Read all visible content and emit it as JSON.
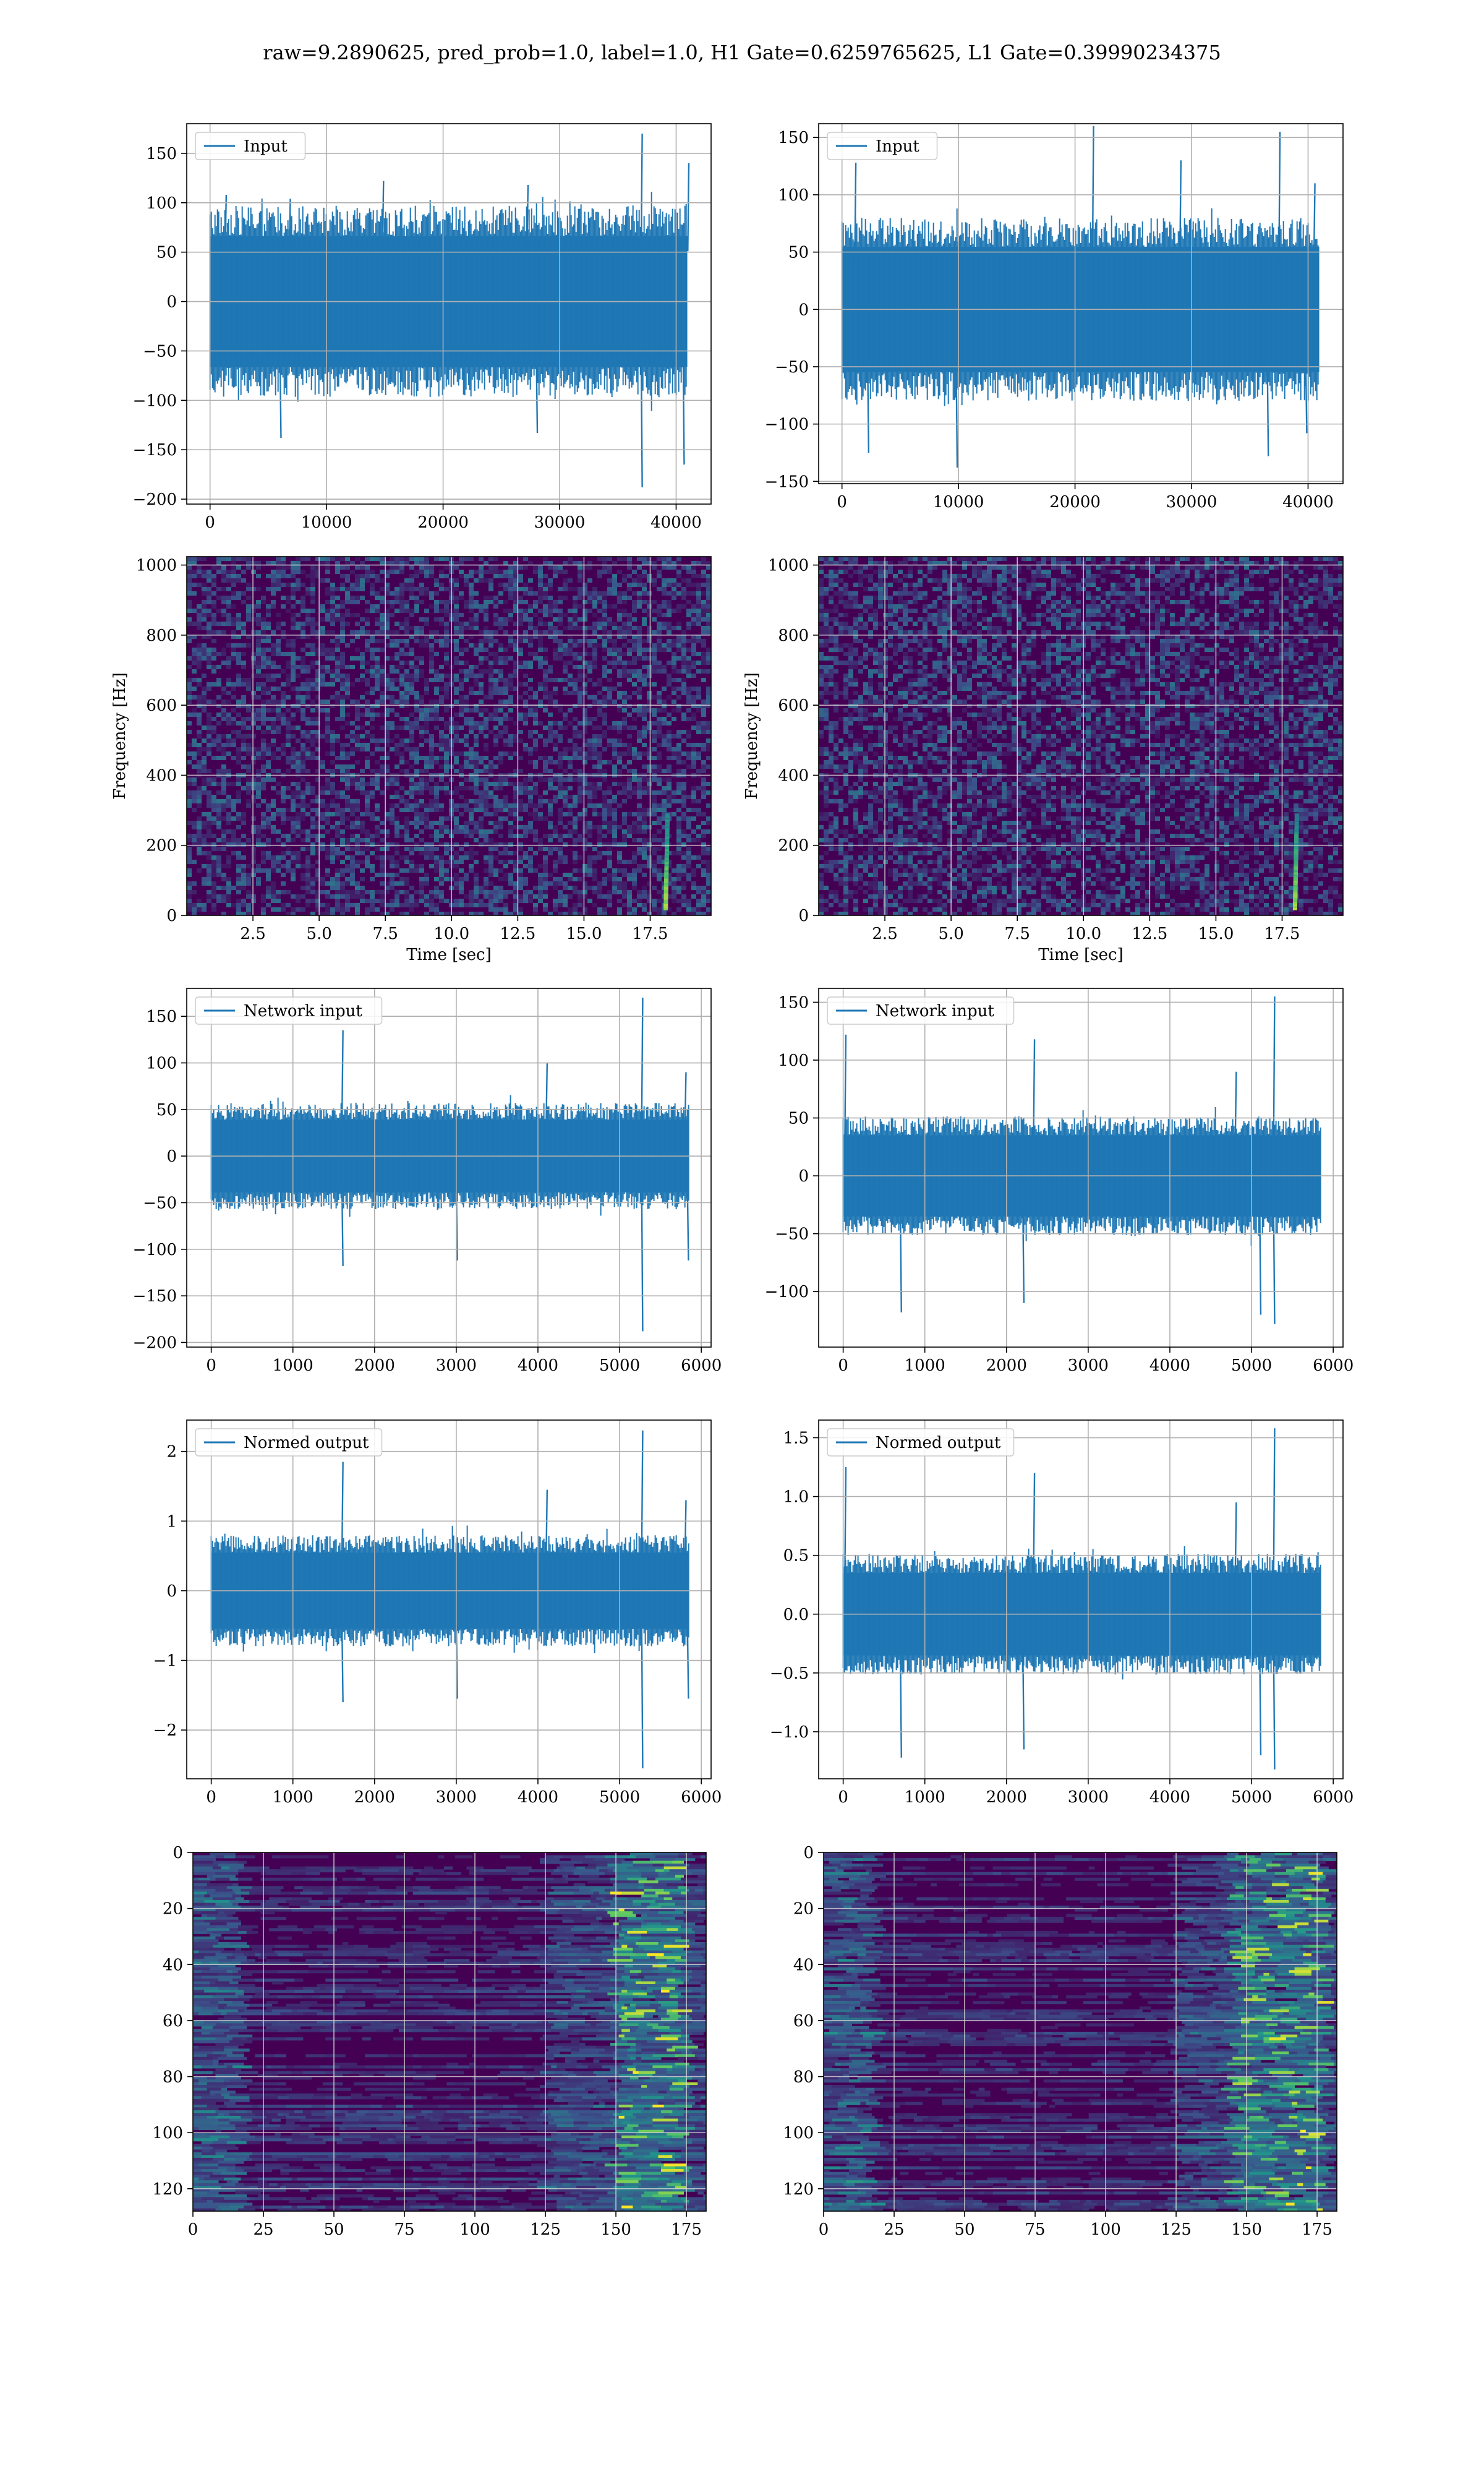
{
  "suptitle": "raw=9.2890625, pred_prob=1.0, label=1.0, H1 Gate=0.6259765625, L1 Gate=0.39990234375",
  "colors": {
    "line": "#1f77b4",
    "grid": "#b0b0b0",
    "viridis_low": "#440154",
    "viridis_mid": "#3b528b",
    "viridis_teal": "#21918c",
    "viridis_green": "#5ec962",
    "viridis_high": "#fde725"
  },
  "chart_data": [
    {
      "id": "h1-input",
      "type": "line",
      "legend": "Input",
      "legend_loc": "upper-left",
      "grid": true,
      "xlim": [
        -2000,
        43000
      ],
      "ylim": [
        -205,
        180
      ],
      "xticks": [
        0,
        10000,
        20000,
        30000,
        40000
      ],
      "xtick_labels": [
        "0",
        "10000",
        "20000",
        "30000",
        "40000"
      ],
      "yticks": [
        -200,
        -150,
        -100,
        -50,
        0,
        50,
        100,
        150
      ],
      "ytick_labels": [
        "−200",
        "−150",
        "−100",
        "−50",
        "0",
        "50",
        "100",
        "150"
      ],
      "series": [
        {
          "x_range": [
            0,
            40960
          ],
          "band": [
            -85,
            85
          ],
          "spikes_pos": [
            [
              1300,
              108
            ],
            [
              6800,
              104
            ],
            [
              14800,
              122
            ],
            [
              27200,
              118
            ],
            [
              37000,
              170
            ],
            [
              41000,
              140
            ]
          ],
          "spikes_neg": [
            [
              6000,
              -138
            ],
            [
              28000,
              -133
            ],
            [
              37000,
              -188
            ],
            [
              40600,
              -165
            ]
          ]
        }
      ]
    },
    {
      "id": "l1-input",
      "type": "line",
      "legend": "Input",
      "legend_loc": "upper-left",
      "grid": true,
      "xlim": [
        -2000,
        43000
      ],
      "ylim": [
        -152,
        162
      ],
      "xticks": [
        0,
        10000,
        20000,
        30000,
        40000
      ],
      "xtick_labels": [
        "0",
        "10000",
        "20000",
        "30000",
        "40000"
      ],
      "yticks": [
        -150,
        -100,
        -50,
        0,
        50,
        100,
        150
      ],
      "ytick_labels": [
        "−150",
        "−100",
        "−50",
        "0",
        "50",
        "100",
        "150"
      ],
      "series": [
        {
          "x_range": [
            0,
            40960
          ],
          "band": [
            -70,
            70
          ],
          "spikes_pos": [
            [
              1100,
              128
            ],
            [
              21500,
              160
            ],
            [
              29000,
              130
            ],
            [
              37500,
              155
            ],
            [
              40500,
              110
            ]
          ],
          "spikes_neg": [
            [
              2200,
              -125
            ],
            [
              9800,
              -138
            ],
            [
              36500,
              -128
            ],
            [
              39800,
              -108
            ]
          ]
        }
      ]
    },
    {
      "id": "h1-spectrogram",
      "type": "heatmap",
      "colormap": "viridis",
      "grid": true,
      "xlabel": "Time [sec]",
      "ylabel": "Frequency [Hz]",
      "xlim": [
        0,
        19.8
      ],
      "ylim": [
        0,
        1024
      ],
      "xticks": [
        2.5,
        5.0,
        7.5,
        10.0,
        12.5,
        15.0,
        17.5
      ],
      "xtick_labels": [
        "2.5",
        "5.0",
        "7.5",
        "10.0",
        "12.5",
        "15.0",
        "17.5"
      ],
      "yticks": [
        0,
        200,
        400,
        600,
        800,
        1000
      ],
      "ytick_labels": [
        "0",
        "200",
        "400",
        "600",
        "800",
        "1000"
      ],
      "chirp": {
        "t": 18.1,
        "f_range": [
          20,
          290
        ]
      }
    },
    {
      "id": "l1-spectrogram",
      "type": "heatmap",
      "colormap": "viridis",
      "grid": true,
      "xlabel": "Time [sec]",
      "ylabel": "Frequency [Hz]",
      "xlim": [
        0,
        19.8
      ],
      "ylim": [
        0,
        1024
      ],
      "xticks": [
        2.5,
        5.0,
        7.5,
        10.0,
        12.5,
        15.0,
        17.5
      ],
      "xtick_labels": [
        "2.5",
        "5.0",
        "7.5",
        "10.0",
        "12.5",
        "15.0",
        "17.5"
      ],
      "yticks": [
        0,
        200,
        400,
        600,
        800,
        1000
      ],
      "ytick_labels": [
        "0",
        "200",
        "400",
        "600",
        "800",
        "1000"
      ],
      "chirp": {
        "t": 18.0,
        "f_range": [
          20,
          290
        ]
      }
    },
    {
      "id": "h1-network-input",
      "type": "line",
      "legend": "Network input",
      "legend_loc": "upper-left",
      "grid": true,
      "xlim": [
        -300,
        6120
      ],
      "ylim": [
        -205,
        180
      ],
      "xticks": [
        0,
        1000,
        2000,
        3000,
        4000,
        5000,
        6000
      ],
      "xtick_labels": [
        "0",
        "1000",
        "2000",
        "3000",
        "4000",
        "5000",
        "6000"
      ],
      "yticks": [
        -200,
        -150,
        -100,
        -50,
        0,
        50,
        100,
        150
      ],
      "ytick_labels": [
        "−200",
        "−150",
        "−100",
        "−50",
        "0",
        "50",
        "100",
        "150"
      ],
      "series": [
        {
          "x_range": [
            0,
            5850
          ],
          "band": [
            -50,
            50
          ],
          "spikes_pos": [
            [
              1600,
              135
            ],
            [
              5270,
              170
            ],
            [
              4100,
              100
            ],
            [
              5800,
              90
            ]
          ],
          "spikes_neg": [
            [
              1600,
              -118
            ],
            [
              3000,
              -112
            ],
            [
              5270,
              -188
            ],
            [
              5830,
              -112
            ]
          ]
        }
      ]
    },
    {
      "id": "l1-network-input",
      "type": "line",
      "legend": "Network input",
      "legend_loc": "upper-left",
      "grid": true,
      "xlim": [
        -300,
        6120
      ],
      "ylim": [
        -148,
        162
      ],
      "xticks": [
        0,
        1000,
        2000,
        3000,
        4000,
        5000,
        6000
      ],
      "xtick_labels": [
        "0",
        "1000",
        "2000",
        "3000",
        "4000",
        "5000",
        "6000"
      ],
      "yticks": [
        -100,
        -50,
        0,
        50,
        100,
        150
      ],
      "ytick_labels": [
        "−100",
        "−50",
        "0",
        "50",
        "100",
        "150"
      ],
      "series": [
        {
          "x_range": [
            0,
            5850
          ],
          "band": [
            -45,
            45
          ],
          "spikes_pos": [
            [
              20,
              122
            ],
            [
              2330,
              118
            ],
            [
              5270,
              155
            ],
            [
              4800,
              90
            ]
          ],
          "spikes_neg": [
            [
              700,
              -118
            ],
            [
              2200,
              -110
            ],
            [
              5270,
              -128
            ],
            [
              5100,
              -120
            ]
          ]
        }
      ]
    },
    {
      "id": "h1-normed-output",
      "type": "line",
      "legend": "Normed output",
      "legend_loc": "upper-left",
      "grid": true,
      "xlim": [
        -300,
        6120
      ],
      "ylim": [
        -2.7,
        2.45
      ],
      "xticks": [
        0,
        1000,
        2000,
        3000,
        4000,
        5000,
        6000
      ],
      "xtick_labels": [
        "0",
        "1000",
        "2000",
        "3000",
        "4000",
        "5000",
        "6000"
      ],
      "yticks": [
        -2,
        -1,
        0,
        1,
        2
      ],
      "ytick_labels": [
        "−2",
        "−1",
        "0",
        "1",
        "2"
      ],
      "series": [
        {
          "x_range": [
            0,
            5850
          ],
          "band": [
            -0.7,
            0.7
          ],
          "spikes_pos": [
            [
              1600,
              1.85
            ],
            [
              5270,
              2.3
            ],
            [
              4100,
              1.45
            ],
            [
              5800,
              1.3
            ]
          ],
          "spikes_neg": [
            [
              1600,
              -1.6
            ],
            [
              3000,
              -1.55
            ],
            [
              5270,
              -2.55
            ],
            [
              5830,
              -1.55
            ]
          ]
        }
      ]
    },
    {
      "id": "l1-normed-output",
      "type": "line",
      "legend": "Normed output",
      "legend_loc": "upper-left",
      "grid": true,
      "xlim": [
        -300,
        6120
      ],
      "ylim": [
        -1.4,
        1.65
      ],
      "xticks": [
        0,
        1000,
        2000,
        3000,
        4000,
        5000,
        6000
      ],
      "xtick_labels": [
        "0",
        "1000",
        "2000",
        "3000",
        "4000",
        "5000",
        "6000"
      ],
      "yticks": [
        -1.0,
        -0.5,
        0.0,
        0.5,
        1.0,
        1.5
      ],
      "ytick_labels": [
        "−1.0",
        "−0.5",
        "0.0",
        "0.5",
        "1.0",
        "1.5"
      ],
      "series": [
        {
          "x_range": [
            0,
            5850
          ],
          "band": [
            -0.45,
            0.45
          ],
          "spikes_pos": [
            [
              20,
              1.25
            ],
            [
              2330,
              1.2
            ],
            [
              5270,
              1.58
            ],
            [
              4800,
              0.95
            ]
          ],
          "spikes_neg": [
            [
              700,
              -1.22
            ],
            [
              2200,
              -1.15
            ],
            [
              5270,
              -1.32
            ],
            [
              5100,
              -1.2
            ]
          ]
        }
      ]
    },
    {
      "id": "h1-feature-map",
      "type": "heatmap",
      "colormap": "viridis",
      "grid": true,
      "xlim": [
        0,
        182
      ],
      "ylim_inverted": [
        0,
        128
      ],
      "xticks": [
        0,
        25,
        50,
        75,
        100,
        125,
        150,
        175
      ],
      "xtick_labels": [
        "0",
        "25",
        "50",
        "75",
        "100",
        "125",
        "150",
        "175"
      ],
      "yticks": [
        0,
        20,
        40,
        60,
        80,
        100,
        120
      ],
      "ytick_labels": [
        "0",
        "20",
        "40",
        "60",
        "80",
        "100",
        "120"
      ],
      "hot_band": [
        150,
        175
      ]
    },
    {
      "id": "l1-feature-map",
      "type": "heatmap",
      "colormap": "viridis",
      "grid": true,
      "xlim": [
        0,
        182
      ],
      "ylim_inverted": [
        0,
        128
      ],
      "xticks": [
        0,
        25,
        50,
        75,
        100,
        125,
        150,
        175
      ],
      "xtick_labels": [
        "0",
        "25",
        "50",
        "75",
        "100",
        "125",
        "150",
        "175"
      ],
      "yticks": [
        0,
        20,
        40,
        60,
        80,
        100,
        120
      ],
      "ytick_labels": [
        "0",
        "20",
        "40",
        "60",
        "80",
        "100",
        "120"
      ],
      "hot_band": [
        145,
        178
      ]
    }
  ]
}
